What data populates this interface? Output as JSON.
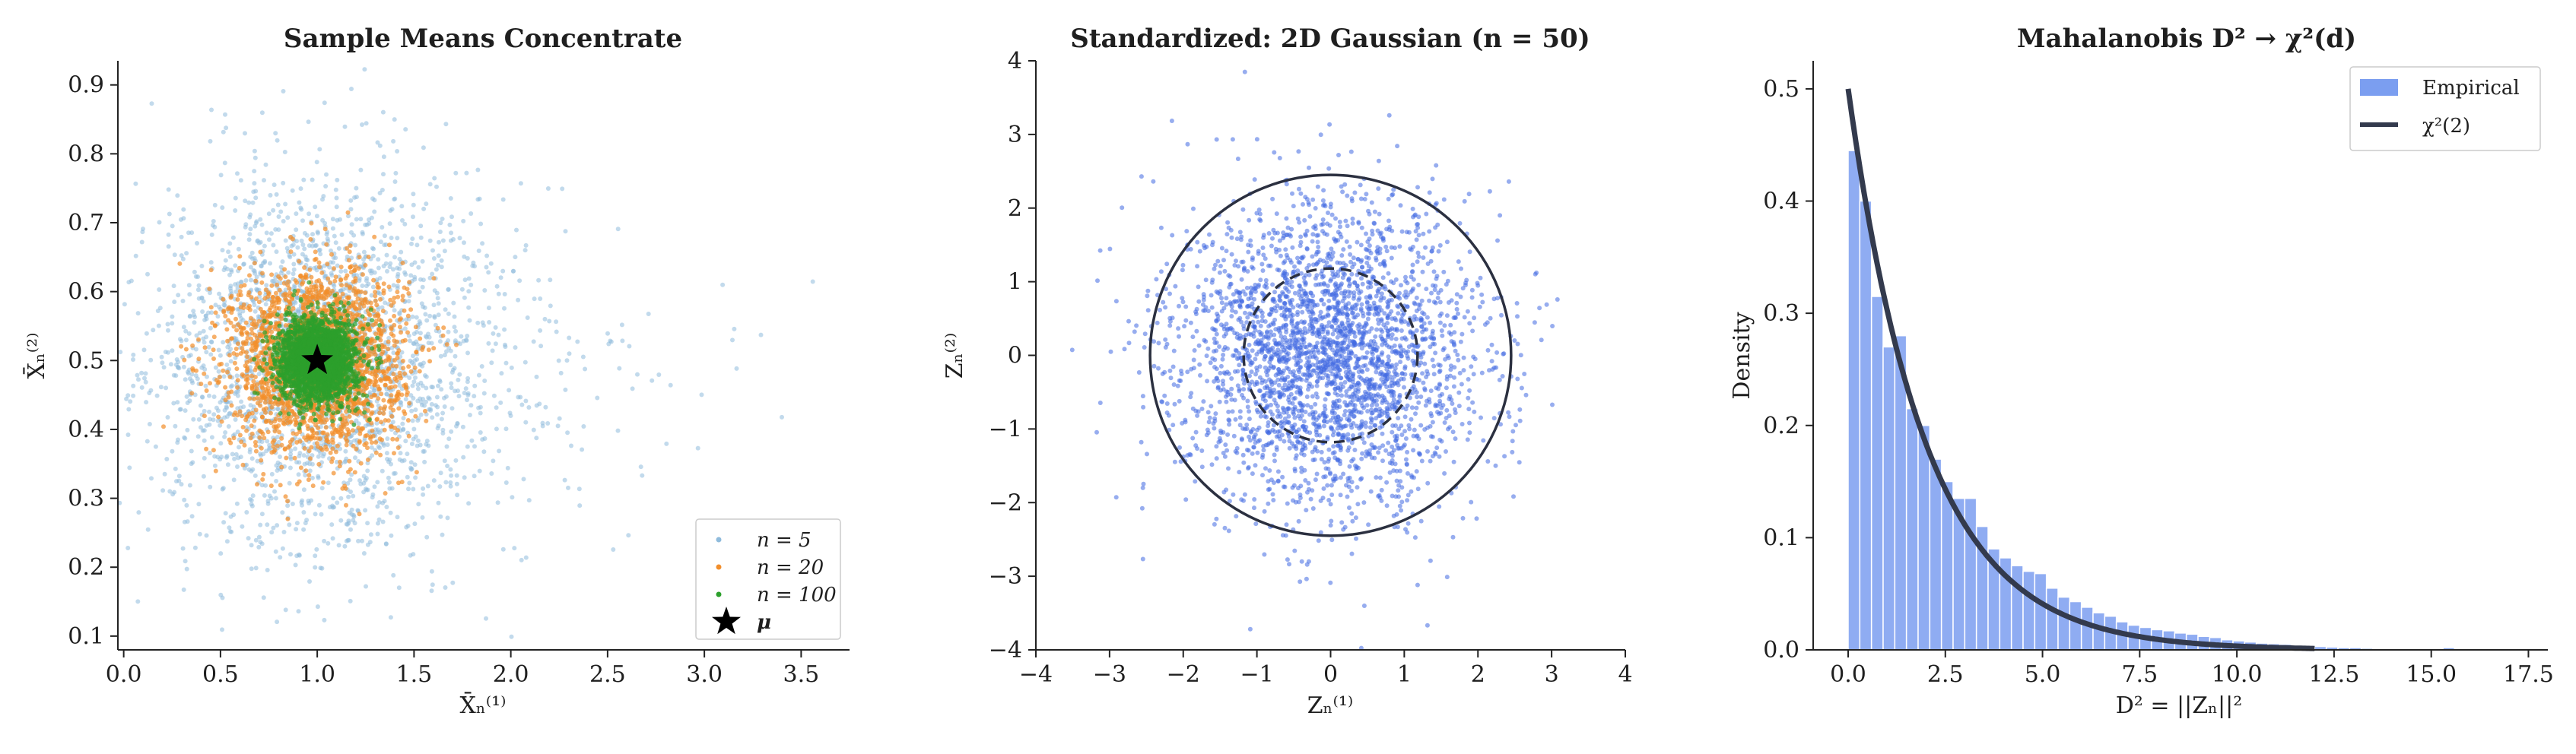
{
  "panels": [
    {
      "title": "Sample Means Concentrate",
      "xlabel": "X̄ₙ⁽¹⁾",
      "ylabel": "X̄ₙ⁽²⁾"
    },
    {
      "title": "Standardized: 2D Gaussian (n = 50)",
      "xlabel": "Zₙ⁽¹⁾",
      "ylabel": "Zₙ⁽²⁾"
    },
    {
      "title": "Mahalanobis D² → χ²(d)",
      "xlabel": "D² = ||Zₙ||²",
      "ylabel": "Density"
    }
  ],
  "chart_data": [
    {
      "type": "scatter",
      "title": "Sample Means Concentrate",
      "xlabel": "X̄ₙ⁽¹⁾",
      "ylabel": "X̄ₙ⁽²⁾",
      "xlim": [
        -0.03,
        3.75
      ],
      "ylim": [
        0.08,
        0.935
      ],
      "xticks": [
        "0.0",
        "0.5",
        "1.0",
        "1.5",
        "2.0",
        "2.5",
        "3.0",
        "3.5"
      ],
      "yticks": [
        "0.1",
        "0.2",
        "0.3",
        "0.4",
        "0.5",
        "0.6",
        "0.7",
        "0.8",
        "0.9"
      ],
      "legend_position": "lower-right",
      "mean_point": {
        "name": "μ",
        "x": 1.0,
        "y": 0.5,
        "color": "#000000"
      },
      "series": [
        {
          "name": "n = 5",
          "color": "#8fbbdc",
          "center": [
            1.0,
            0.5
          ],
          "sd": [
            0.42,
            0.13
          ],
          "count": 2600
        },
        {
          "name": "n = 20",
          "color": "#f28e2b",
          "center": [
            1.0,
            0.5
          ],
          "sd": [
            0.22,
            0.065
          ],
          "count": 2400
        },
        {
          "name": "n = 100",
          "color": "#2ca02c",
          "center": [
            1.0,
            0.5
          ],
          "sd": [
            0.1,
            0.03
          ],
          "count": 2400
        }
      ],
      "legend_labels": [
        "n = 5",
        "n = 20",
        "n = 100",
        "μ"
      ]
    },
    {
      "type": "scatter",
      "title": "Standardized: 2D Gaussian (n = 50)",
      "xlabel": "Zₙ⁽¹⁾",
      "ylabel": "Zₙ⁽²⁾",
      "xlim": [
        -4,
        4
      ],
      "ylim": [
        -4,
        4
      ],
      "xticks": [
        "−4",
        "−3",
        "−2",
        "−1",
        "0",
        "1",
        "2",
        "3",
        "4"
      ],
      "yticks": [
        "−4",
        "−3",
        "−2",
        "−1",
        "0",
        "1",
        "2",
        "3",
        "4"
      ],
      "points": {
        "color": "#4169e1",
        "center": [
          0,
          0
        ],
        "sd": [
          1,
          1
        ],
        "count": 3000
      },
      "circles": [
        {
          "radius": 2.45,
          "style": "solid",
          "color": "#2b3040"
        },
        {
          "radius": 1.18,
          "style": "dashed",
          "color": "#2b3040"
        }
      ]
    },
    {
      "type": "bar",
      "title": "Mahalanobis D² → χ²(d)",
      "xlabel": "D² = ||Zₙ||²",
      "ylabel": "Density",
      "xlim": [
        -0.9,
        18
      ],
      "ylim": [
        0,
        0.525
      ],
      "xticks": [
        "0.0",
        "2.5",
        "5.0",
        "7.5",
        "10.0",
        "12.5",
        "15.0",
        "17.5"
      ],
      "yticks": [
        "0.0",
        "0.1",
        "0.2",
        "0.3",
        "0.4",
        "0.5"
      ],
      "legend_position": "top-right",
      "legend_labels": [
        "Empirical",
        "χ²(2)"
      ],
      "bar_color": "#7b9ef0",
      "curve_color": "#333a4d",
      "bin_width": 0.3,
      "bins_start": 0.0,
      "densities": [
        0.445,
        0.4,
        0.315,
        0.27,
        0.28,
        0.215,
        0.2,
        0.17,
        0.15,
        0.135,
        0.135,
        0.11,
        0.09,
        0.082,
        0.075,
        0.07,
        0.068,
        0.055,
        0.047,
        0.043,
        0.038,
        0.033,
        0.03,
        0.025,
        0.022,
        0.02,
        0.018,
        0.017,
        0.015,
        0.014,
        0.012,
        0.011,
        0.009,
        0.008,
        0.007,
        0.006,
        0.0055,
        0.005,
        0.004,
        0.0035,
        0.003,
        0.0025,
        0.002,
        0.002,
        0.0015,
        0.0012,
        0.001,
        0.001,
        0.0008,
        0.0007,
        0.0006,
        0.0005,
        0.0005,
        0.0004,
        0.0003,
        0.0003,
        0.0002,
        0.0002,
        0.0002,
        0.0001,
        0.0001,
        0.0,
        0.0,
        0.0,
        0.0,
        0.0,
        0.0,
        0.0,
        0.0,
        0.0,
        0.0,
        0.0,
        0.0,
        0.0,
        0.0,
        0.0,
        0.0,
        0.0,
        0.0,
        0.0,
        0.0,
        0.0,
        0.0,
        0.0,
        0.0,
        0.0,
        0.0,
        0.0,
        0.0,
        0.0,
        0.0,
        0.0,
        0.0,
        0.0,
        0.0,
        0.0,
        0.0,
        0.0,
        0.0,
        0.0,
        0.0
      ],
      "curve": {
        "name": "χ²(2)",
        "formula": "0.5*exp(-x/2)",
        "x_range": [
          0,
          12
        ]
      }
    }
  ]
}
